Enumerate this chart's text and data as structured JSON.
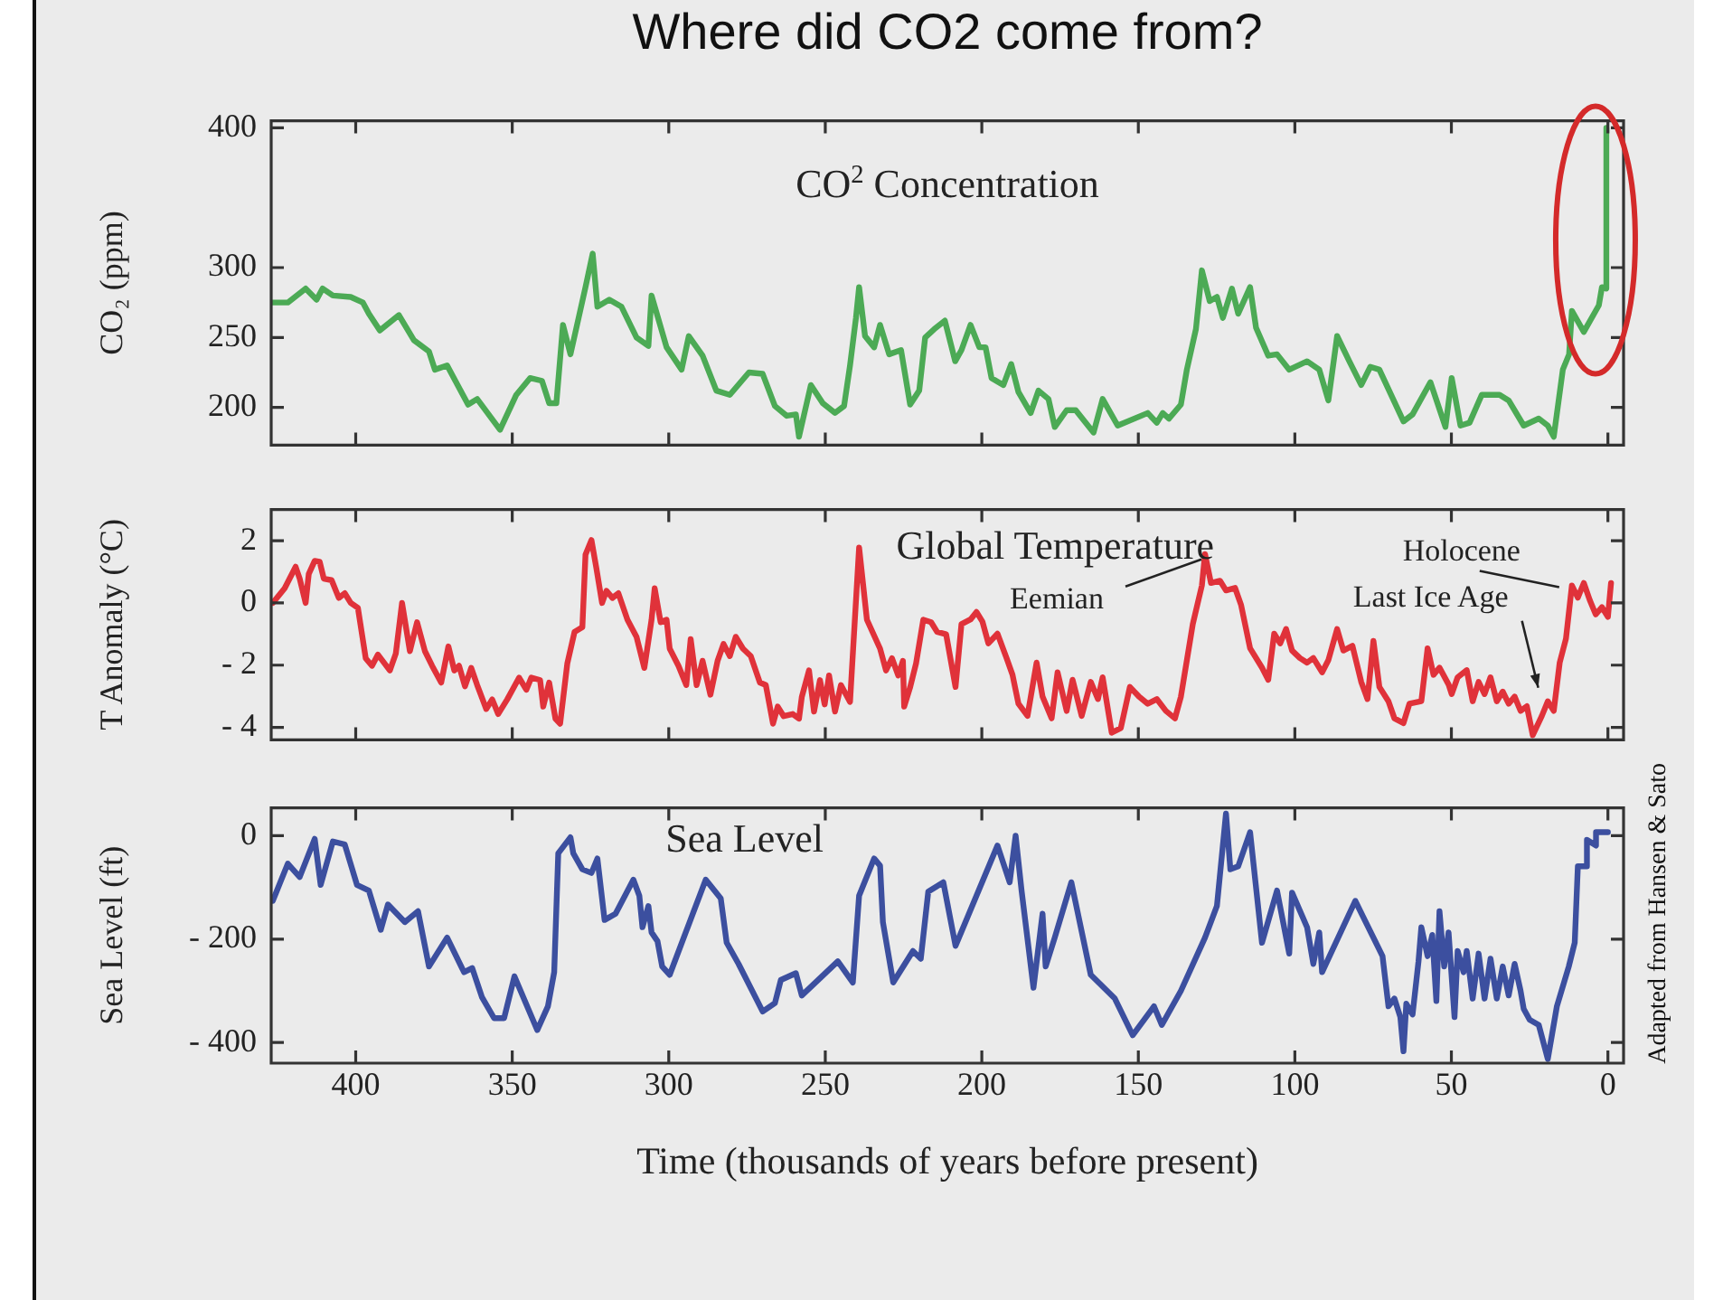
{
  "chart_data": [
    {
      "type": "line",
      "title": "Where did CO2 come from?",
      "subtitle": "CO$^{2}$ Concentration",
      "ylabel": "CO₂ (ppm)",
      "xlim": [
        427,
        -5
      ],
      "xticks": [
        400,
        350,
        300,
        250,
        200,
        150,
        100,
        50,
        0
      ],
      "ylim": [
        173,
        405
      ],
      "yticks": [
        200,
        250,
        300,
        400
      ],
      "tick_labels": "y",
      "marker": "none",
      "x": [
        426.5,
        421.7,
        416,
        412.5,
        410.6,
        407.3,
        401.6,
        397.7,
        395.8,
        392.3,
        386.2,
        381.4,
        376.6,
        374.7,
        370.8,
        364.1,
        361.2,
        353.9,
        348.7,
        344.3,
        340.5,
        338.2,
        335.9,
        333.8,
        331.4,
        326.6,
        324.3,
        322.8,
        319,
        315.1,
        310.3,
        306.5,
        305.5,
        300.7,
        295.9,
        293.6,
        289.2,
        284.8,
        280.5,
        274.4,
        270,
        266.1,
        262.3,
        259.4,
        258.4,
        254.6,
        250.8,
        246.9,
        244,
        242.1,
        240.2,
        239.2,
        237.3,
        234.4,
        232.5,
        229.6,
        225.8,
        222.9,
        220,
        218.1,
        215.2,
        211.8,
        208.5,
        206.5,
        203.6,
        200.8,
        198.8,
        196.9,
        193.1,
        190.6,
        188.3,
        184.4,
        181.9,
        178.7,
        176.7,
        172.9,
        170,
        164.3,
        161.4,
        156.6,
        147,
        144.1,
        142.2,
        140.2,
        136.4,
        134.5,
        131.6,
        129.7,
        127.2,
        124.9,
        123,
        120.1,
        118.1,
        114.3,
        112.4,
        108.5,
        105.7,
        101.8,
        96.1,
        92.2,
        89.3,
        86.5,
        82.6,
        78.8,
        75.9,
        73,
        65.3,
        62.4,
        56.7,
        51.9,
        49.9,
        47.1,
        44.2,
        40.3,
        34.6,
        31.7,
        26.9,
        22.1,
        19.2,
        17.3,
        14.4,
        12.4,
        11.5,
        7.7,
        2.9,
        1.9,
        0.6,
        0.5
      ],
      "series": [
        {
          "color": "#4caa55",
          "values": [
            275,
            275,
            285,
            277,
            285,
            280,
            279,
            275,
            267,
            255,
            266,
            248,
            240,
            227,
            230,
            202,
            206,
            184,
            209,
            221,
            219,
            203,
            203,
            259,
            238,
            286,
            310,
            272,
            277,
            272,
            250,
            244,
            280,
            243,
            227,
            251,
            237,
            212,
            209,
            225,
            224,
            201,
            194,
            195,
            179,
            216,
            203,
            196,
            201,
            230,
            264,
            286,
            251,
            243,
            259,
            238,
            241,
            202,
            212,
            250,
            256,
            262,
            233,
            241,
            259,
            243,
            243,
            221,
            216,
            231,
            211,
            196,
            212,
            206,
            186,
            198,
            198,
            182,
            206,
            187,
            196,
            189,
            196,
            192,
            202,
            227,
            256,
            298,
            276,
            279,
            264,
            285,
            267,
            286,
            257,
            237,
            238,
            227,
            233,
            227,
            205,
            251,
            233,
            216,
            229,
            227,
            190,
            195,
            218,
            186,
            221,
            187,
            189,
            209,
            209,
            205,
            187,
            192,
            187,
            179,
            227,
            238,
            269,
            254,
            273,
            286,
            285,
            400
          ]
        }
      ]
    },
    {
      "type": "line",
      "title": "Global Temperature",
      "ylabel": "T Anomaly (°C)",
      "xlim": [
        427,
        -5
      ],
      "xticks": [
        400,
        350,
        300,
        250,
        200,
        150,
        100,
        50,
        0
      ],
      "ylim": [
        -4.4,
        3.0
      ],
      "yticks": [
        2,
        0,
        {
          "value": -2,
          "label": "- 2"
        },
        {
          "value": -4,
          "label": "- 4"
        }
      ],
      "tick_labels": "y",
      "marker": "none",
      "x": [
        426.5,
        422.7,
        419.2,
        417.9,
        416,
        415,
        413.1,
        411.5,
        410.2,
        407.7,
        405.4,
        403.5,
        401.6,
        399.3,
        396.8,
        394.8,
        392.9,
        389.1,
        387.2,
        385.2,
        382.7,
        380.4,
        377.9,
        375.6,
        372.7,
        370.4,
        368.5,
        367,
        365.1,
        363.1,
        361.2,
        358.3,
        356.4,
        354.5,
        351.6,
        347.8,
        345.5,
        343.9,
        341.1,
        340.1,
        338.2,
        336.2,
        334.7,
        332.4,
        330.1,
        327.6,
        326.6,
        324.7,
        323.2,
        321.3,
        319.9,
        318,
        316.1,
        313.2,
        310.3,
        307.8,
        305.5,
        304.5,
        302.6,
        300.7,
        299.7,
        296.9,
        294.4,
        293,
        291.1,
        289.2,
        286.7,
        284.4,
        282.5,
        280.5,
        278.6,
        276.3,
        273.8,
        270.9,
        269,
        266.7,
        265.2,
        263.3,
        260.4,
        258.4,
        257.5,
        255.2,
        253.6,
        251.7,
        250.2,
        248.8,
        246.9,
        245,
        242.1,
        239.2,
        236.7,
        232.5,
        230.6,
        228.7,
        226.7,
        225.2,
        224.8,
        222.9,
        221,
        218.7,
        216.2,
        214.3,
        211.4,
        208.4,
        206.5,
        203.6,
        201.7,
        199.8,
        197.9,
        195,
        192.1,
        190.2,
        188.3,
        185.4,
        182.5,
        180.6,
        177.7,
        175.8,
        172.9,
        171,
        168.1,
        165.2,
        162.9,
        161.4,
        158.5,
        155.6,
        152.7,
        149.8,
        147,
        144.1,
        141.2,
        138.3,
        136.4,
        132.6,
        129.7,
        128.7,
        126.8,
        123.9,
        122,
        119.1,
        117.2,
        114.3,
        110.5,
        108.5,
        106.6,
        104.7,
        102.8,
        100.9,
        98.4,
        96.1,
        94.1,
        91.3,
        89.3,
        86.5,
        84.5,
        81.6,
        78.8,
        76.8,
        74.9,
        73,
        70.1,
        68.2,
        65.3,
        63.4,
        59.6,
        57.6,
        55.7,
        53.8,
        50.9,
        49.9,
        48,
        45.1,
        43.2,
        41.3,
        39.4,
        37.5,
        35.5,
        33.6,
        31.7,
        29.8,
        27.9,
        25.9,
        24,
        21.1,
        19.2,
        17.3,
        15.4,
        13.4,
        11.5,
        9.6,
        7.7,
        5.8,
        3.9,
        1.9,
        0,
        -1
      ],
      "series": [
        {
          "color": "#e0323a",
          "values": [
            0,
            0.47,
            1.16,
            0.78,
            0,
            0.93,
            1.35,
            1.32,
            0.78,
            0.73,
            0.16,
            0.31,
            0,
            -0.16,
            -1.78,
            -2.02,
            -1.66,
            -2.17,
            -1.63,
            0,
            -1.55,
            -0.62,
            -1.55,
            -2.02,
            -2.56,
            -1.4,
            -2.17,
            -2.02,
            -2.68,
            -2.09,
            -2.64,
            -3.41,
            -3.1,
            -3.57,
            -3.1,
            -2.4,
            -2.79,
            -2.4,
            -2.48,
            -3.33,
            -2.56,
            -3.72,
            -3.88,
            -1.94,
            -0.93,
            -0.78,
            1.55,
            2.02,
            1.16,
            0,
            0.39,
            0.16,
            0.31,
            -0.54,
            -1.09,
            -2.09,
            -0.54,
            0.47,
            -0.62,
            -0.54,
            -1.47,
            -2.02,
            -2.64,
            -1.16,
            -2.64,
            -1.86,
            -2.95,
            -1.86,
            -1.32,
            -1.71,
            -1.09,
            -1.47,
            -1.71,
            -2.56,
            -2.64,
            -3.88,
            -3.33,
            -3.64,
            -3.57,
            -3.72,
            -3.02,
            -2.17,
            -3.49,
            -2.48,
            -3.26,
            -2.33,
            -3.49,
            -2.64,
            -3.18,
            1.78,
            -0.54,
            -1.47,
            -2.17,
            -1.78,
            -2.33,
            -1.86,
            -3.33,
            -2.71,
            -1.94,
            -0.54,
            -0.62,
            -0.93,
            -1.01,
            -2.7,
            -0.68,
            -0.53,
            -0.29,
            -0.6,
            -1.3,
            -0.99,
            -1.77,
            -2.31,
            -3.24,
            -3.63,
            -1.92,
            -3.01,
            -3.71,
            -2.23,
            -3.47,
            -2.47,
            -3.63,
            -2.54,
            -3.09,
            -2.39,
            -4.17,
            -4.02,
            -2.7,
            -3.01,
            -3.24,
            -3.09,
            -3.47,
            -3.71,
            -3.01,
            -0.68,
            0.56,
            1.57,
            0.64,
            0.71,
            0.4,
            0.48,
            -0.06,
            -1.46,
            -2.08,
            -2.47,
            -0.99,
            -1.3,
            -0.84,
            -1.53,
            -1.77,
            -1.92,
            -1.77,
            -2.23,
            -1.84,
            -0.84,
            -1.53,
            -1.38,
            -2.54,
            -3.09,
            -1.22,
            -2.7,
            -3.16,
            -3.71,
            -3.86,
            -3.24,
            -3.16,
            -1.46,
            -2.31,
            -2.08,
            -2.62,
            -2.93,
            -2.39,
            -2.16,
            -3.16,
            -2.54,
            -2.93,
            -2.39,
            -3.16,
            -2.85,
            -3.24,
            -3.01,
            -3.47,
            -3.32,
            -4.25,
            -3.63,
            -3.16,
            -3.47,
            -1.92,
            -1.15,
            0.56,
            0.17,
            0.64,
            0.09,
            -0.37,
            -0.14,
            -0.45,
            0.64
          ]
        }
      ],
      "annotations": [
        {
          "text": "Eemian",
          "x": 128.7,
          "y": 1.57
        },
        {
          "text": "Holocene",
          "x": 14.4,
          "y": 0.33
        },
        {
          "text": "Last Ice Age",
          "x": 21.1,
          "y": -2.9
        }
      ]
    },
    {
      "type": "line",
      "title": "Sea Level",
      "ylabel": "Sea Level (ft)",
      "xlabel": "Time (thousands of years before present)",
      "xlim": [
        427,
        -5
      ],
      "xticks": [
        400,
        350,
        300,
        250,
        200,
        150,
        100,
        50,
        0
      ],
      "ylim": [
        -440,
        54
      ],
      "yticks": [
        0,
        {
          "value": -200,
          "label": "- 200"
        },
        {
          "value": -400,
          "label": "- 400"
        }
      ],
      "marker": "none",
      "x": [
        426.5,
        421.7,
        417.9,
        413.1,
        411.2,
        407.3,
        403.5,
        399.6,
        395.8,
        392,
        389.7,
        384.3,
        380.1,
        376.6,
        370.8,
        365.4,
        362.8,
        359.7,
        355.8,
        352.6,
        349.3,
        342,
        338.6,
        336.6,
        335.3,
        331.4,
        330.5,
        327.6,
        324.7,
        322.8,
        320.5,
        317,
        311.3,
        309.4,
        308.4,
        306.5,
        305.5,
        303.6,
        302.1,
        299.7,
        288.2,
        283.4,
        281.5,
        277.7,
        270,
        266.1,
        264.2,
        259.4,
        257.5,
        246,
        241.2,
        239.2,
        234.4,
        232.5,
        231.6,
        228.3,
        222,
        219.5,
        217.1,
        212.3,
        208.4,
        195,
        191.1,
        189.2,
        187.3,
        183.5,
        180.6,
        179.6,
        176.7,
        171.4,
        165.2,
        157.5,
        151.8,
        145,
        142.5,
        136.4,
        128.7,
        124.9,
        122,
        120.6,
        118.1,
        114.3,
        110.5,
        105.7,
        101.8,
        100.9,
        96.1,
        94.1,
        92.2,
        91.3,
        80.7,
        72,
        70.1,
        68.2,
        66.3,
        65.3,
        64.4,
        62.4,
        60.5,
        59.6,
        57.6,
        56.1,
        54.8,
        53.8,
        52.3,
        50.9,
        49,
        48,
        46.1,
        45.1,
        43.2,
        41.3,
        39.4,
        37.5,
        35.5,
        33.6,
        31.7,
        29.8,
        27.9,
        26.9,
        25,
        22.1,
        19.2,
        16.3,
        12.5,
        10.6,
        9.6,
        6.7,
        6.7,
        3.8,
        3.8,
        0
      ],
      "series": [
        {
          "color": "#3c4f9f",
          "values": [
            -126,
            -54,
            -80,
            -6,
            -95,
            -11,
            -17,
            -95,
            -106,
            -182,
            -133,
            -167,
            -146,
            -253,
            -197,
            -264,
            -256,
            -312,
            -353,
            -353,
            -272,
            -376,
            -330,
            -264,
            -34,
            -3,
            -34,
            -65,
            -72,
            -44,
            -163,
            -151,
            -85,
            -116,
            -177,
            -136,
            -187,
            -204,
            -253,
            -269,
            -85,
            -121,
            -207,
            -248,
            -340,
            -324,
            -279,
            -266,
            -309,
            -243,
            -284,
            -116,
            -44,
            -58,
            -167,
            -284,
            -223,
            -238,
            -108,
            -90,
            -213,
            -19,
            -90,
            0,
            -106,
            -294,
            -151,
            -253,
            -197,
            -90,
            -269,
            -315,
            -386,
            -330,
            -366,
            -300,
            -197,
            -136,
            43,
            -65,
            -59,
            7,
            -207,
            -106,
            -228,
            -110,
            -177,
            -248,
            -187,
            -264,
            -126,
            -233,
            -330,
            -315,
            -351,
            -417,
            -325,
            -346,
            -243,
            -177,
            -233,
            -192,
            -320,
            -146,
            -253,
            -187,
            -351,
            -223,
            -264,
            -223,
            -315,
            -228,
            -315,
            -238,
            -315,
            -253,
            -309,
            -248,
            -300,
            -335,
            -356,
            -366,
            -432,
            -330,
            -253,
            -207,
            -59,
            -59,
            -8,
            -19,
            7,
            7
          ]
        }
      ],
      "annotations": [
        "Adapted from Hansen & Sato"
      ]
    }
  ]
}
